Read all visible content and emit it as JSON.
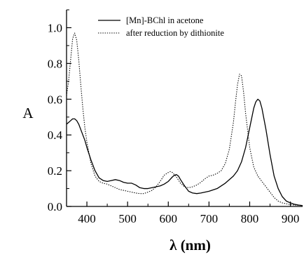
{
  "chart_data": {
    "type": "line",
    "xlabel": "λ (nm)",
    "ylabel": "A",
    "xlim": [
      350,
      930
    ],
    "ylim": [
      0.0,
      1.1
    ],
    "x_ticks": [
      400,
      500,
      600,
      700,
      800,
      900
    ],
    "x_tick_labels": [
      "400",
      "500",
      "600",
      "700",
      "800",
      "900"
    ],
    "y_ticks": [
      0.0,
      0.2,
      0.4,
      0.6,
      0.8,
      1.0
    ],
    "y_tick_labels": [
      "0.0",
      "0.2",
      "0.4",
      "0.6",
      "0.8",
      "1.0"
    ],
    "grid": false,
    "legend_position": "top-right",
    "series": [
      {
        "name": "[Mn]-BChl in acetone",
        "style": "solid",
        "color": "#000000",
        "x": [
          350,
          355,
          360,
          365,
          370,
          375,
          380,
          385,
          390,
          395,
          400,
          410,
          420,
          430,
          440,
          450,
          460,
          470,
          480,
          490,
          500,
          510,
          520,
          530,
          540,
          550,
          560,
          570,
          580,
          590,
          600,
          610,
          615,
          620,
          625,
          630,
          640,
          650,
          660,
          670,
          680,
          700,
          720,
          740,
          760,
          770,
          780,
          790,
          800,
          810,
          815,
          820,
          825,
          830,
          840,
          850,
          860,
          870,
          880,
          890,
          900,
          910,
          920,
          930
        ],
        "y": [
          0.46,
          0.47,
          0.48,
          0.49,
          0.49,
          0.48,
          0.46,
          0.43,
          0.4,
          0.37,
          0.33,
          0.26,
          0.2,
          0.16,
          0.145,
          0.14,
          0.145,
          0.15,
          0.145,
          0.135,
          0.13,
          0.13,
          0.12,
          0.105,
          0.1,
          0.1,
          0.105,
          0.11,
          0.115,
          0.125,
          0.14,
          0.165,
          0.175,
          0.178,
          0.17,
          0.15,
          0.115,
          0.085,
          0.075,
          0.072,
          0.075,
          0.085,
          0.1,
          0.13,
          0.17,
          0.2,
          0.25,
          0.33,
          0.44,
          0.55,
          0.585,
          0.6,
          0.59,
          0.55,
          0.43,
          0.29,
          0.17,
          0.1,
          0.055,
          0.03,
          0.02,
          0.012,
          0.008,
          0.005
        ]
      },
      {
        "name": "after reduction by dithionite",
        "style": "dotted",
        "color": "#000000",
        "x": [
          350,
          355,
          360,
          365,
          370,
          375,
          380,
          385,
          390,
          395,
          400,
          410,
          420,
          430,
          440,
          450,
          460,
          470,
          480,
          490,
          500,
          510,
          520,
          530,
          540,
          550,
          560,
          570,
          580,
          590,
          600,
          605,
          610,
          620,
          630,
          640,
          650,
          660,
          670,
          680,
          690,
          700,
          710,
          720,
          730,
          740,
          750,
          760,
          765,
          770,
          775,
          780,
          785,
          790,
          800,
          810,
          820,
          830,
          840,
          850,
          860,
          870,
          880,
          900,
          920,
          930
        ],
        "y": [
          0.62,
          0.7,
          0.82,
          0.94,
          0.97,
          0.93,
          0.82,
          0.68,
          0.55,
          0.44,
          0.36,
          0.24,
          0.17,
          0.14,
          0.13,
          0.125,
          0.115,
          0.105,
          0.095,
          0.09,
          0.085,
          0.08,
          0.075,
          0.072,
          0.072,
          0.08,
          0.09,
          0.11,
          0.14,
          0.175,
          0.19,
          0.195,
          0.19,
          0.165,
          0.13,
          0.11,
          0.105,
          0.11,
          0.12,
          0.135,
          0.155,
          0.17,
          0.175,
          0.185,
          0.2,
          0.24,
          0.32,
          0.47,
          0.58,
          0.68,
          0.74,
          0.73,
          0.64,
          0.52,
          0.33,
          0.22,
          0.17,
          0.14,
          0.11,
          0.08,
          0.05,
          0.03,
          0.02,
          0.01,
          0.006,
          0.005
        ]
      }
    ]
  }
}
